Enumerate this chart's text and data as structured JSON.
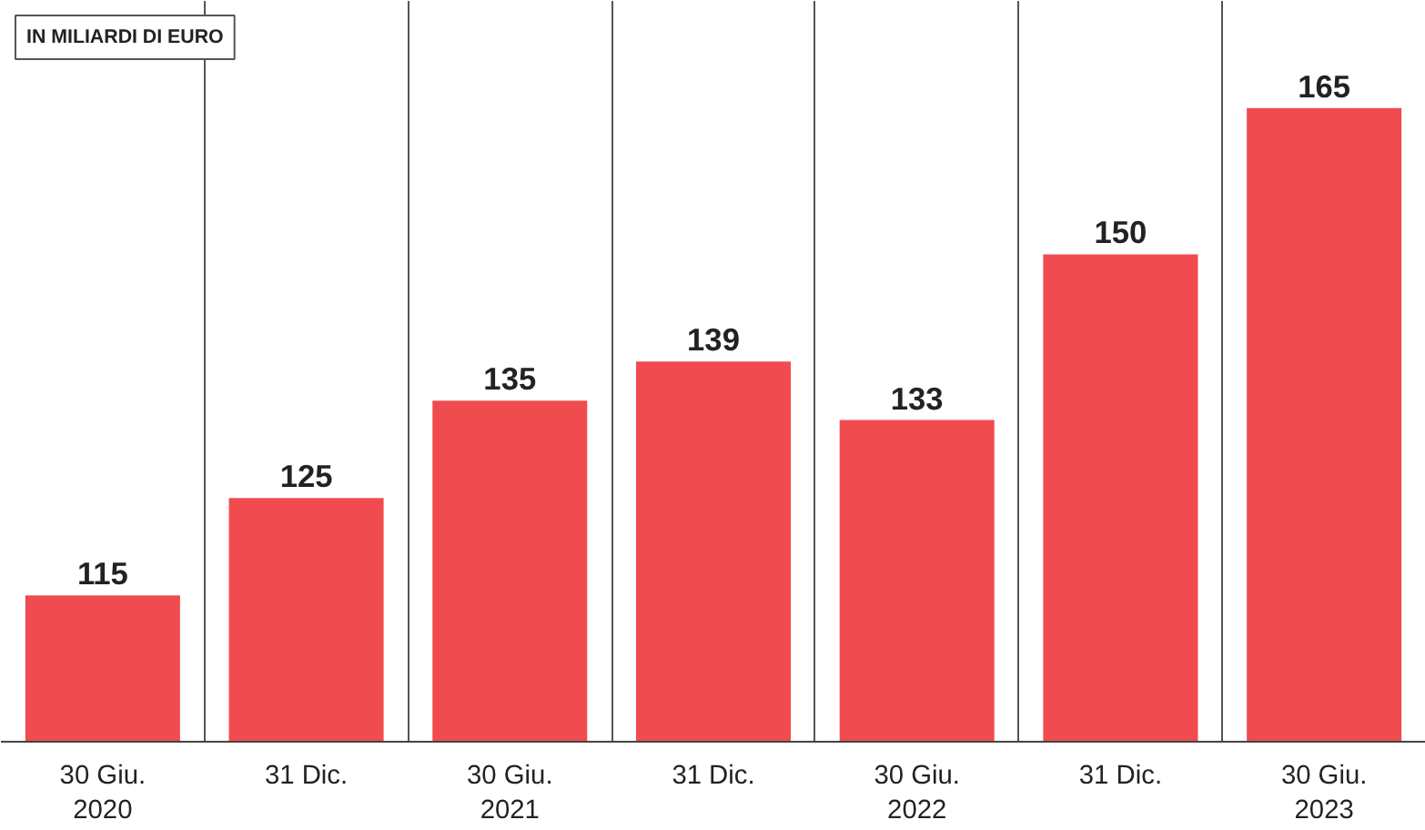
{
  "chart_data": {
    "type": "bar",
    "categories": [
      "30 Giu.\n2020",
      "31 Dic.",
      "30 Giu.\n2021",
      "31 Dic.",
      "30 Giu.\n2022",
      "31 Dic.",
      "30 Giu.\n2023"
    ],
    "values": [
      115,
      125,
      135,
      139,
      133,
      150,
      165
    ],
    "color": "#f04b4f",
    "ylim": [
      100,
      176
    ],
    "data_labels": true,
    "grid": "x",
    "annotations": [
      "IN MILIARDI DI EURO"
    ]
  }
}
